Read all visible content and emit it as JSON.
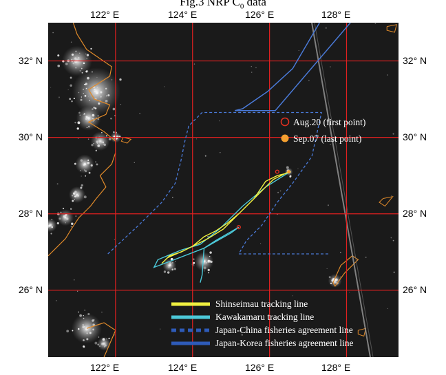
{
  "figure": {
    "title": "Fig.3 NRP C0 data"
  },
  "axes": {
    "lon_labels": [
      "122° E",
      "124° E",
      "126° E",
      "128° E"
    ],
    "lat_labels": [
      "32° N",
      "30° N",
      "28° N",
      "26° N"
    ],
    "lon_range": [
      120.25,
      129.35
    ],
    "lat_range": [
      24.25,
      33.0
    ],
    "grid_lon": [
      122,
      124,
      126,
      128
    ],
    "grid_lat": [
      32,
      30,
      28,
      26
    ]
  },
  "markers": {
    "first_point_label": "Aug.20 (first point)",
    "last_point_label": "Sep.07 (last point)",
    "first_color": "#e03020",
    "last_color": "#f5a030"
  },
  "legend": {
    "items": [
      {
        "label": "Shinseimau tracking line",
        "color": "#f0f040",
        "style": "solid"
      },
      {
        "label": "Kawakamaru tracking line",
        "color": "#4cc8d8",
        "style": "solid"
      },
      {
        "label": "Japan-China fisheries agreement line",
        "color": "#2e5bb8",
        "style": "dashed"
      },
      {
        "label": "Japan-Korea fisheries agreement line",
        "color": "#2e5bb8",
        "style": "solid"
      }
    ]
  },
  "colors": {
    "background": "#1a1a1a",
    "grid": "#e02020",
    "coast": "#e08a2a",
    "boundary": "#4a7ad8"
  },
  "tracks": {
    "shinseimaru": [
      [
        126.55,
        29.1
      ],
      [
        126.4,
        29.05
      ],
      [
        126.2,
        29.0
      ],
      [
        125.9,
        28.85
      ],
      [
        125.6,
        28.4
      ],
      [
        125.2,
        28.0
      ],
      [
        124.9,
        27.75
      ],
      [
        124.6,
        27.55
      ],
      [
        124.3,
        27.4
      ],
      [
        124.0,
        27.15
      ],
      [
        123.7,
        27.0
      ],
      [
        123.4,
        26.9
      ],
      [
        123.2,
        26.7
      ],
      [
        123.35,
        26.85
      ],
      [
        123.8,
        27.05
      ],
      [
        124.4,
        27.35
      ],
      [
        124.8,
        27.6
      ],
      [
        125.1,
        27.9
      ],
      [
        125.5,
        28.3
      ],
      [
        125.8,
        28.6
      ],
      [
        126.1,
        28.9
      ],
      [
        126.5,
        29.1
      ]
    ],
    "kawakamaru": [
      [
        126.5,
        29.08
      ],
      [
        125.9,
        28.7
      ],
      [
        125.3,
        28.2
      ],
      [
        124.7,
        27.6
      ],
      [
        124.2,
        27.2
      ],
      [
        123.7,
        27.05
      ],
      [
        123.1,
        26.8
      ],
      [
        123.0,
        26.6
      ],
      [
        123.4,
        26.75
      ],
      [
        124.3,
        27.1
      ],
      [
        125.0,
        27.5
      ],
      [
        125.2,
        27.65
      ],
      [
        124.6,
        27.3
      ],
      [
        124.3,
        27.1
      ],
      [
        124.25,
        26.4
      ],
      [
        124.2,
        26.2
      ]
    ]
  },
  "points": {
    "first_points": [
      [
        126.2,
        29.1
      ],
      [
        125.2,
        27.65
      ]
    ],
    "last_point": [
      126.5,
      29.1
    ]
  },
  "boundaries": {
    "japan_china": [
      [
        121.8,
        26.95
      ],
      [
        122.6,
        27.7
      ],
      [
        123.2,
        28.3
      ],
      [
        123.55,
        28.8
      ],
      [
        123.7,
        29.4
      ],
      [
        123.8,
        29.9
      ],
      [
        123.9,
        30.3
      ],
      [
        124.25,
        30.65
      ],
      [
        127.35,
        30.65
      ],
      [
        127.1,
        29.5
      ],
      [
        126.6,
        28.8
      ],
      [
        126.2,
        28.3
      ],
      [
        125.8,
        27.7
      ],
      [
        125.4,
        27.3
      ],
      [
        125.2,
        26.95
      ],
      [
        127.55,
        26.95
      ]
    ],
    "japan_korea": [
      [
        127.3,
        33.0
      ],
      [
        126.6,
        31.8
      ],
      [
        125.95,
        31.2
      ],
      [
        125.3,
        30.75
      ],
      [
        125.1,
        30.7
      ],
      [
        126.15,
        30.7
      ],
      [
        128.1,
        33.0
      ]
    ]
  },
  "land": {
    "china_coast": [
      [
        120.9,
        33.0
      ],
      [
        121.0,
        32.7
      ],
      [
        121.25,
        32.3
      ],
      [
        121.9,
        31.85
      ],
      [
        121.85,
        31.6
      ],
      [
        121.3,
        31.25
      ],
      [
        121.45,
        31.0
      ],
      [
        121.85,
        30.85
      ],
      [
        121.75,
        30.6
      ],
      [
        121.3,
        30.4
      ],
      [
        121.7,
        30.15
      ],
      [
        122.0,
        29.9
      ],
      [
        122.0,
        29.6
      ],
      [
        121.9,
        29.3
      ],
      [
        121.6,
        29.0
      ],
      [
        121.75,
        28.7
      ],
      [
        121.5,
        28.4
      ],
      [
        121.35,
        28.2
      ],
      [
        121.05,
        27.9
      ],
      [
        120.85,
        27.6
      ],
      [
        120.7,
        27.35
      ],
      [
        120.45,
        27.1
      ],
      [
        120.25,
        26.9
      ]
    ],
    "taiwan_coast": [
      [
        121.25,
        25.0
      ],
      [
        121.7,
        25.15
      ],
      [
        122.0,
        24.95
      ],
      [
        121.85,
        24.6
      ],
      [
        121.7,
        24.25
      ]
    ],
    "okinawa_coast": [
      [
        127.7,
        26.1
      ],
      [
        127.95,
        26.45
      ],
      [
        128.3,
        26.8
      ],
      [
        128.15,
        26.9
      ],
      [
        127.85,
        26.65
      ],
      [
        127.65,
        26.2
      ],
      [
        127.7,
        26.1
      ]
    ],
    "islands": [
      [
        [
          122.2,
          30.0
        ],
        [
          122.4,
          29.95
        ],
        [
          122.3,
          29.85
        ],
        [
          122.15,
          29.9
        ],
        [
          122.2,
          30.0
        ]
      ],
      [
        [
          128.95,
          28.4
        ],
        [
          129.2,
          28.45
        ],
        [
          129.0,
          28.2
        ],
        [
          128.85,
          28.3
        ],
        [
          128.95,
          28.4
        ]
      ],
      [
        [
          129.05,
          32.9
        ],
        [
          129.3,
          32.95
        ],
        [
          129.25,
          32.75
        ],
        [
          129.05,
          32.8
        ],
        [
          129.05,
          32.9
        ]
      ],
      [
        [
          128.3,
          24.95
        ],
        [
          128.5,
          25.0
        ],
        [
          128.45,
          24.8
        ],
        [
          128.3,
          24.85
        ],
        [
          128.3,
          24.95
        ]
      ]
    ],
    "light_clusters": [
      [
        121.5,
        31.2,
        35
      ],
      [
        121.0,
        32.0,
        22
      ],
      [
        121.3,
        30.5,
        18
      ],
      [
        121.6,
        29.9,
        14
      ],
      [
        121.2,
        29.3,
        14
      ],
      [
        121.0,
        28.5,
        12
      ],
      [
        120.7,
        27.9,
        12
      ],
      [
        120.3,
        27.7,
        10
      ],
      [
        121.25,
        25.0,
        22
      ],
      [
        121.7,
        24.6,
        10
      ],
      [
        124.3,
        26.75,
        14
      ],
      [
        123.4,
        26.65,
        10
      ],
      [
        127.7,
        26.25,
        10
      ],
      [
        126.5,
        29.1,
        6
      ],
      [
        122.0,
        30.0,
        8
      ]
    ]
  }
}
